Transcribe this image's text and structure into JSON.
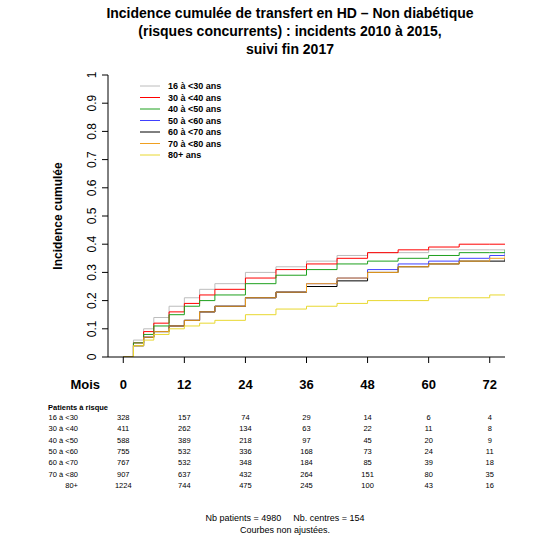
{
  "chart_data": {
    "type": "line",
    "title": "Incidence cumulée de transfert en HD – Non diabétique\n(risques concurrents) : incidents 2010 à 2015,\nsuivi fin 2017",
    "y_label": "Incidence cumulée",
    "x_label": "Mois",
    "xlim": [
      -3,
      75
    ],
    "ylim": [
      0,
      1
    ],
    "xticks": [
      0,
      12,
      24,
      36,
      48,
      60,
      72
    ],
    "yticks": [
      0,
      0.1,
      0.2,
      0.3,
      0.4,
      0.5,
      0.6,
      0.7,
      0.8,
      0.9,
      1
    ],
    "grid": false,
    "legend": "top-left",
    "x": [
      0,
      2,
      4,
      6,
      9,
      12,
      15,
      18,
      24,
      30,
      36,
      42,
      48,
      54,
      60,
      66,
      72,
      75
    ],
    "series": [
      {
        "name": "16 à <30 ans",
        "color": "#bcbcbc",
        "values": [
          0,
          0.06,
          0.1,
          0.14,
          0.18,
          0.21,
          0.24,
          0.26,
          0.3,
          0.32,
          0.34,
          0.36,
          0.37,
          0.37,
          0.38,
          0.38,
          0.38,
          0.38
        ]
      },
      {
        "name": "30 à <40 ans",
        "color": "#ff0000",
        "values": [
          0,
          0.05,
          0.09,
          0.12,
          0.16,
          0.19,
          0.22,
          0.24,
          0.28,
          0.31,
          0.33,
          0.35,
          0.37,
          0.38,
          0.39,
          0.4,
          0.4,
          0.4
        ]
      },
      {
        "name": "40 à <50 ans",
        "color": "#1ea01e",
        "values": [
          0,
          0.05,
          0.08,
          0.11,
          0.15,
          0.18,
          0.2,
          0.22,
          0.26,
          0.29,
          0.31,
          0.33,
          0.34,
          0.35,
          0.36,
          0.37,
          0.37,
          0.38
        ]
      },
      {
        "name": "50 à <60 ans",
        "color": "#4040ff",
        "values": [
          0,
          0.04,
          0.07,
          0.09,
          0.11,
          0.13,
          0.16,
          0.18,
          0.21,
          0.23,
          0.26,
          0.28,
          0.31,
          0.33,
          0.34,
          0.35,
          0.36,
          0.37
        ]
      },
      {
        "name": "60 à <70 ans",
        "color": "#000000",
        "values": [
          0,
          0.04,
          0.07,
          0.09,
          0.11,
          0.13,
          0.16,
          0.18,
          0.21,
          0.23,
          0.25,
          0.27,
          0.3,
          0.32,
          0.33,
          0.34,
          0.34,
          0.35
        ]
      },
      {
        "name": "70 à <80 ans",
        "color": "#f0a020",
        "values": [
          0,
          0.04,
          0.07,
          0.09,
          0.11,
          0.13,
          0.16,
          0.18,
          0.21,
          0.23,
          0.26,
          0.28,
          0.3,
          0.32,
          0.33,
          0.34,
          0.35,
          0.36
        ]
      },
      {
        "name": "80+ ans",
        "color": "#e8d830",
        "values": [
          0,
          0.04,
          0.06,
          0.08,
          0.1,
          0.11,
          0.12,
          0.13,
          0.15,
          0.17,
          0.18,
          0.19,
          0.2,
          0.2,
          0.21,
          0.21,
          0.22,
          0.22
        ]
      }
    ],
    "risk_table": {
      "title": "Patients à risque",
      "x": [
        0,
        12,
        24,
        36,
        48,
        60,
        72
      ],
      "rows": [
        {
          "name": "16 à <30",
          "values": [
            328,
            157,
            74,
            29,
            14,
            6,
            4
          ]
        },
        {
          "name": "30 à <40",
          "values": [
            411,
            262,
            134,
            63,
            22,
            11,
            8
          ]
        },
        {
          "name": "40 à <50",
          "values": [
            588,
            389,
            218,
            97,
            45,
            20,
            9
          ]
        },
        {
          "name": "50 à <60",
          "values": [
            755,
            532,
            336,
            168,
            73,
            24,
            11
          ]
        },
        {
          "name": "60 à <70",
          "values": [
            767,
            532,
            348,
            184,
            85,
            39,
            18
          ]
        },
        {
          "name": "70 à <80",
          "values": [
            907,
            637,
            432,
            264,
            151,
            80,
            35
          ]
        },
        {
          "name": "80+",
          "values": [
            1224,
            744,
            475,
            245,
            100,
            43,
            16
          ]
        }
      ]
    },
    "notes": [
      "Nb patients = 4980",
      "Nb. centres = 154",
      "Courbes non ajustées."
    ]
  }
}
